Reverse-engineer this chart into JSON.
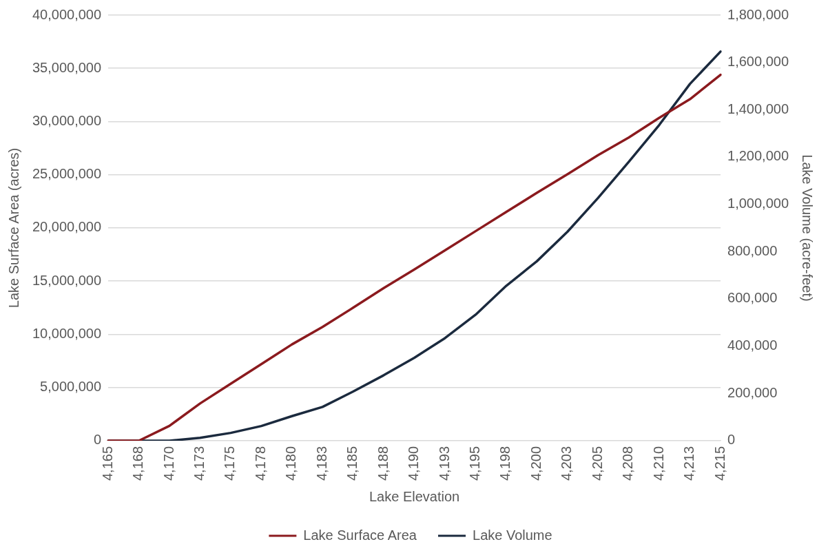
{
  "chart_data": {
    "type": "line",
    "xlabel": "Lake Elevation",
    "ylabel": "Lake Surface Area (acres)",
    "y2label": "Lake Volume (acre-feet)",
    "categories": [
      "4,165",
      "4,168",
      "4,170",
      "4,173",
      "4,175",
      "4,178",
      "4,180",
      "4,183",
      "4,185",
      "4,188",
      "4,190",
      "4,193",
      "4,195",
      "4,198",
      "4,200",
      "4,203",
      "4,205",
      "4,208",
      "4,210",
      "4,213",
      "4,215"
    ],
    "series": [
      {
        "name": "Lake Surface Area",
        "color": "#8b1a1e",
        "values": [
          0,
          0,
          1400000,
          3500000,
          5350000,
          7200000,
          9050000,
          10700000,
          12500000,
          14350000,
          16100000,
          17900000,
          19700000,
          21500000,
          23300000,
          25050000,
          26850000,
          28500000,
          30350000,
          32100000,
          34400000
        ]
      },
      {
        "name": "Lake Volume",
        "color": "#1b2a3e",
        "axis": "y2",
        "values": [
          0,
          0,
          0,
          12000,
          33000,
          62000,
          104000,
          143000,
          208000,
          277000,
          351000,
          434000,
          533000,
          655000,
          759000,
          884000,
          1027000,
          1179000,
          1336000,
          1509000,
          1646000
        ]
      }
    ],
    "ylim": [
      0,
      40000000
    ],
    "yticks": [
      0,
      {
        "value": 5000000,
        "label": "5,000,000"
      },
      {
        "value": 10000000,
        "label": "10,000,000"
      },
      {
        "value": 15000000,
        "label": "15,000,000"
      },
      {
        "value": 20000000,
        "label": "20,000,000"
      },
      {
        "value": 25000000,
        "label": "25,000,000"
      },
      {
        "value": 30000000,
        "label": "30,000,000"
      },
      {
        "value": 35000000,
        "label": "35,000,000"
      },
      {
        "value": 40000000,
        "label": "40,000,000"
      }
    ],
    "y2lim": [
      0,
      1800000
    ],
    "y2ticks": [
      0,
      {
        "value": 200000,
        "label": "200,000"
      },
      {
        "value": 400000,
        "label": "400,000"
      },
      {
        "value": 600000,
        "label": "600,000"
      },
      {
        "value": 800000,
        "label": "800,000"
      },
      {
        "value": 1000000,
        "label": "1,000,000"
      },
      {
        "value": 1200000,
        "label": "1,200,000"
      },
      {
        "value": 1400000,
        "label": "1,400,000"
      },
      {
        "value": 1600000,
        "label": "1,600,000"
      },
      {
        "value": 1800000,
        "label": "1,800,000"
      }
    ],
    "grid": "y",
    "legend": "bottom",
    "marker": "none",
    "line_style": "solid"
  }
}
